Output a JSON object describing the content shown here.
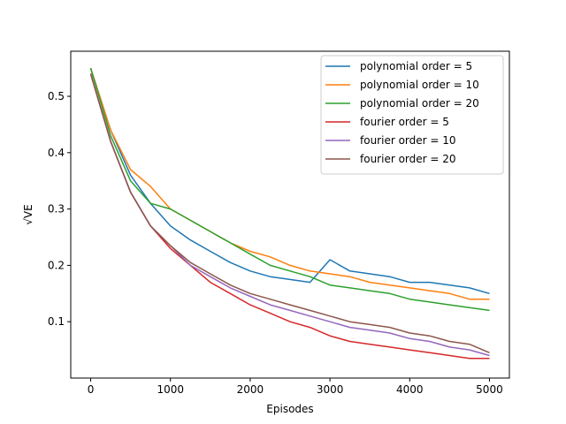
{
  "chart_data": {
    "type": "line",
    "xlabel": "Episodes",
    "ylabel": "√VE",
    "xlim": [
      -250,
      5250
    ],
    "ylim": [
      0.0,
      0.58
    ],
    "xticks": [
      0,
      1000,
      2000,
      3000,
      4000,
      5000
    ],
    "yticks": [
      0.1,
      0.2,
      0.3,
      0.4,
      0.5
    ],
    "grid": false,
    "legend_position": "top-right",
    "x": [
      0,
      250,
      500,
      750,
      1000,
      1250,
      1500,
      1750,
      2000,
      2250,
      2500,
      2750,
      3000,
      3250,
      3500,
      3750,
      4000,
      4250,
      4500,
      4750,
      5000
    ],
    "series": [
      {
        "name": "polynomial order = 5",
        "color": "#1f77b4",
        "values": [
          0.55,
          0.44,
          0.36,
          0.31,
          0.27,
          0.245,
          0.225,
          0.205,
          0.19,
          0.18,
          0.175,
          0.17,
          0.21,
          0.19,
          0.185,
          0.18,
          0.17,
          0.17,
          0.165,
          0.16,
          0.15
        ]
      },
      {
        "name": "polynomial order = 10",
        "color": "#ff7f0e",
        "values": [
          0.55,
          0.44,
          0.37,
          0.34,
          0.3,
          0.28,
          0.26,
          0.24,
          0.225,
          0.215,
          0.2,
          0.19,
          0.185,
          0.18,
          0.17,
          0.165,
          0.16,
          0.155,
          0.15,
          0.14,
          0.14
        ]
      },
      {
        "name": "polynomial order = 20",
        "color": "#2ca02c",
        "values": [
          0.55,
          0.43,
          0.35,
          0.31,
          0.3,
          0.28,
          0.26,
          0.24,
          0.22,
          0.2,
          0.19,
          0.18,
          0.165,
          0.16,
          0.155,
          0.15,
          0.14,
          0.135,
          0.13,
          0.125,
          0.12
        ]
      },
      {
        "name": "fourier order = 5",
        "color": "#d62728",
        "values": [
          0.54,
          0.42,
          0.33,
          0.27,
          0.23,
          0.2,
          0.17,
          0.15,
          0.13,
          0.115,
          0.1,
          0.09,
          0.075,
          0.065,
          0.06,
          0.055,
          0.05,
          0.045,
          0.04,
          0.035,
          0.035
        ]
      },
      {
        "name": "fourier order = 10",
        "color": "#9467bd",
        "values": [
          0.54,
          0.42,
          0.33,
          0.27,
          0.235,
          0.2,
          0.18,
          0.16,
          0.145,
          0.13,
          0.12,
          0.11,
          0.1,
          0.09,
          0.085,
          0.08,
          0.07,
          0.065,
          0.055,
          0.05,
          0.04
        ]
      },
      {
        "name": "fourier order = 20",
        "color": "#8c564b",
        "values": [
          0.54,
          0.42,
          0.33,
          0.27,
          0.235,
          0.205,
          0.185,
          0.165,
          0.15,
          0.14,
          0.13,
          0.12,
          0.11,
          0.1,
          0.095,
          0.09,
          0.08,
          0.075,
          0.065,
          0.06,
          0.045
        ]
      }
    ]
  }
}
